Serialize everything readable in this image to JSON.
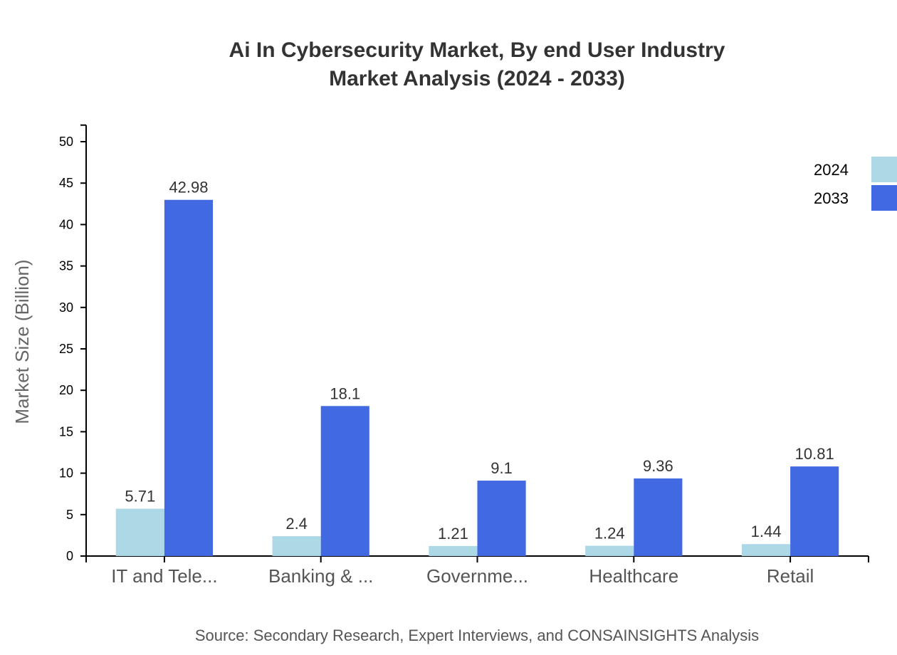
{
  "chart_data": {
    "type": "bar",
    "title": "Ai In Cybersecurity Market, By end User Industry",
    "subtitle": "Market Analysis (2024 - 2033)",
    "xlabel": "",
    "ylabel": "Market Size (Billion)",
    "ylim": [
      0,
      52
    ],
    "yticks": [
      0,
      5,
      10,
      15,
      20,
      25,
      30,
      35,
      40,
      45,
      50
    ],
    "categories": [
      "IT and Tele...",
      "Banking & ...",
      "Governme...",
      "Healthcare",
      "Retail"
    ],
    "series": [
      {
        "name": "2024",
        "color": "#add8e6",
        "values": [
          5.71,
          2.4,
          1.21,
          1.24,
          1.44
        ]
      },
      {
        "name": "2033",
        "color": "#4169e1",
        "values": [
          42.98,
          18.1,
          9.1,
          9.36,
          10.81
        ]
      }
    ],
    "legend_position": "top-right",
    "grid": false,
    "source": "Source: Secondary Research, Expert Interviews, and CONSAINSIGHTS Analysis"
  }
}
